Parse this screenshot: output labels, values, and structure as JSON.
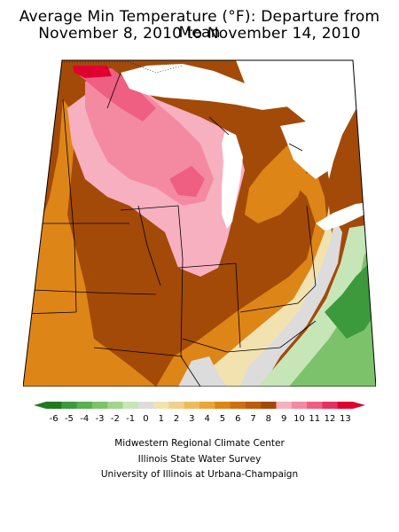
{
  "title_line1": "Average Min Temperature (°F): Departure from Mean",
  "title_line2": "November 8, 2010 to November 14, 2010",
  "legend": {
    "labels": [
      "-6",
      "-5",
      "-4",
      "-3",
      "-2",
      "-1",
      "0",
      "1",
      "2",
      "3",
      "4",
      "5",
      "6",
      "7",
      "8",
      "9",
      "10",
      "11",
      "12",
      "13"
    ],
    "colors": [
      "#1f7a1f",
      "#3c9a3c",
      "#5aaf4e",
      "#7cc26a",
      "#a2d48d",
      "#c6e6b8",
      "#dcdcdc",
      "#f2e2b0",
      "#f0d08a",
      "#eebb5c",
      "#e9a43a",
      "#de8518",
      "#cf6f0c",
      "#bf5a08",
      "#a34a08",
      "#f7b0c0",
      "#f48aa2",
      "#ee5f82",
      "#e63060",
      "#e00030"
    ]
  },
  "map": {
    "projection_note": "",
    "colors": {
      "hot_red": "#e00030",
      "pink_dark": "#ee5f82",
      "pink_mid": "#f48aa2",
      "pink_light": "#f7b0c0",
      "brown": "#a34a08",
      "brown_mid": "#bf5a08",
      "orange": "#de8518",
      "orange_light": "#eebb5c",
      "tan": "#f2e2b0",
      "gray": "#dcdcdc",
      "green_light": "#c6e6b8",
      "green_mid": "#7cc26a",
      "green_dark": "#3c9a3c",
      "lake": "#ffffff"
    }
  },
  "credits": {
    "line1": "Midwestern Regional Climate Center",
    "line2": "Illinois State Water Survey",
    "line3": "University of Illinois at Urbana-Champaign"
  }
}
